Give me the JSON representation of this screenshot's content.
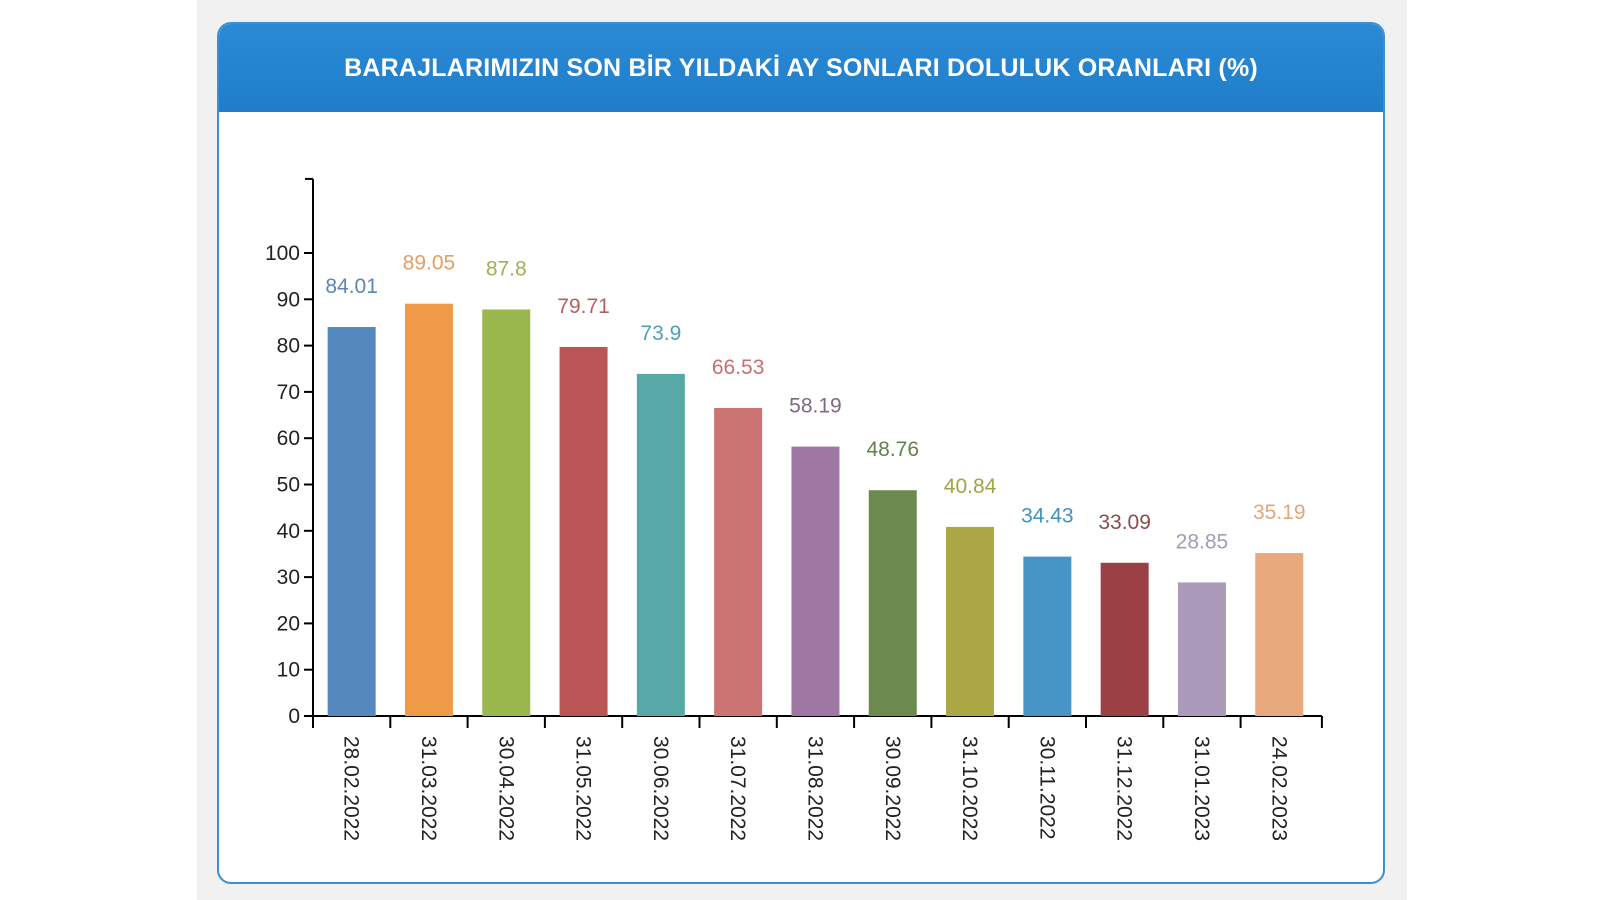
{
  "title": "BARAJLARIMIZIN SON BİR YILDAKİ AY SONLARI DOLULUK ORANLARI (%)",
  "chart_data": {
    "type": "bar",
    "title": "BARAJLARIMIZIN SON BİR YILDAKİ AY SONLARI DOLULUK ORANLARI (%)",
    "xlabel": "",
    "ylabel": "",
    "ylim": [
      0,
      116
    ],
    "yticks": [
      0,
      10,
      20,
      30,
      40,
      50,
      60,
      70,
      80,
      90,
      100
    ],
    "grid": false,
    "categories": [
      "28.02.2022",
      "31.03.2022",
      "30.04.2022",
      "31.05.2022",
      "30.06.2022",
      "31.07.2022",
      "31.08.2022",
      "30.09.2022",
      "31.10.2022",
      "30.11.2022",
      "31.12.2022",
      "31.01.2023",
      "24.02.2023"
    ],
    "values": [
      84.01,
      89.05,
      87.8,
      79.71,
      73.9,
      66.53,
      58.19,
      48.76,
      40.84,
      34.43,
      33.09,
      28.85,
      35.19
    ],
    "value_labels": [
      "84.01",
      "89.05",
      "87.8",
      "79.71",
      "73.9",
      "66.53",
      "58.19",
      "48.76",
      "40.84",
      "34.43",
      "33.09",
      "28.85",
      "35.19"
    ],
    "bar_colors": [
      "#5589be",
      "#ee9a47",
      "#9ab84d",
      "#bb5455",
      "#57a9a7",
      "#cc7473",
      "#9e78a2",
      "#6c8a4f",
      "#aaa744",
      "#4695c6",
      "#9b4146",
      "#ab9aba",
      "#e8a97d"
    ],
    "label_colors": [
      "#5c86b5",
      "#e1a064",
      "#9ab05a",
      "#b65f62",
      "#4e9fb4",
      "#c76f72",
      "#7b6b7f",
      "#677f4c",
      "#9ea747",
      "#3e92c3",
      "#8c4c4c",
      "#a59bb3",
      "#e2a57e"
    ]
  }
}
